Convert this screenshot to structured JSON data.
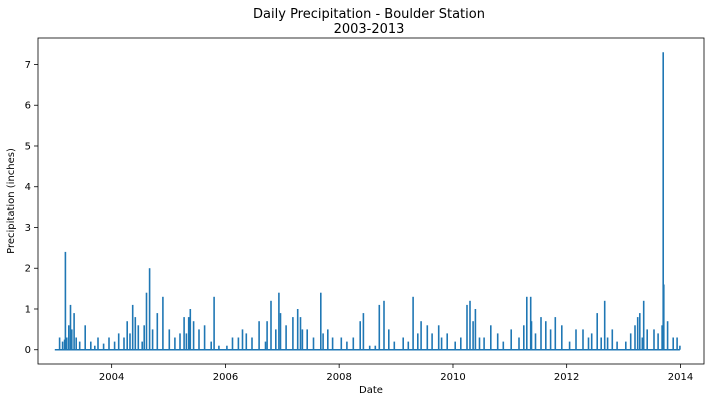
{
  "chart_data": {
    "type": "line",
    "title": "Daily Precipitation - Boulder Station",
    "subtitle": "2003-2013",
    "xlabel": "Date",
    "ylabel": "Precipitation (inches)",
    "xlim": [
      "2002-09-15",
      "2014-06-01"
    ],
    "ylim": [
      -0.35,
      7.65
    ],
    "x_ticks": [
      "2004",
      "2006",
      "2008",
      "2010",
      "2012",
      "2014"
    ],
    "y_ticks": [
      "0",
      "1",
      "2",
      "3",
      "4",
      "5",
      "6",
      "7"
    ],
    "grid": false,
    "line_color": "#1f77b4",
    "series": [
      {
        "x": [
          "2003-01-01",
          "2003-02-01",
          "2003-02-20",
          "2003-03-05",
          "2003-03-10",
          "2003-03-19",
          "2003-04-01",
          "2003-04-12",
          "2003-04-20",
          "2003-05-05",
          "2003-05-18",
          "2003-06-10",
          "2003-07-15",
          "2003-08-20",
          "2003-09-15",
          "2003-10-05",
          "2003-11-10",
          "2003-12-15",
          "2004-01-20",
          "2004-02-15",
          "2004-03-20",
          "2004-04-10",
          "2004-04-28",
          "2004-05-15",
          "2004-06-01",
          "2004-06-20",
          "2004-07-15",
          "2004-07-28",
          "2004-08-12",
          "2004-09-01",
          "2004-09-20",
          "2004-10-20",
          "2004-11-25",
          "2005-01-05",
          "2005-02-10",
          "2005-03-15",
          "2005-04-10",
          "2005-04-25",
          "2005-05-10",
          "2005-05-20",
          "2005-06-10",
          "2005-07-15",
          "2005-08-20",
          "2005-10-01",
          "2005-10-20",
          "2005-11-20",
          "2006-01-10",
          "2006-02-15",
          "2006-03-25",
          "2006-04-20",
          "2006-05-15",
          "2006-06-20",
          "2006-08-05",
          "2006-09-15",
          "2006-09-25",
          "2006-10-20",
          "2006-11-20",
          "2006-12-10",
          "2006-12-20",
          "2007-01-25",
          "2007-03-10",
          "2007-04-10",
          "2007-04-28",
          "2007-05-10",
          "2007-06-10",
          "2007-07-20",
          "2007-09-05",
          "2007-09-20",
          "2007-10-20",
          "2007-11-20",
          "2008-01-15",
          "2008-02-20",
          "2008-04-01",
          "2008-05-15",
          "2008-06-05",
          "2008-07-15",
          "2008-08-20",
          "2008-09-15",
          "2008-10-15",
          "2008-11-15",
          "2008-12-20",
          "2009-02-15",
          "2009-03-20",
          "2009-04-20",
          "2009-05-20",
          "2009-06-10",
          "2009-07-20",
          "2009-08-20",
          "2009-10-01",
          "2009-10-20",
          "2009-11-25",
          "2010-01-15",
          "2010-02-20",
          "2010-04-01",
          "2010-04-20",
          "2010-05-10",
          "2010-05-25",
          "2010-06-20",
          "2010-07-20",
          "2010-09-01",
          "2010-10-15",
          "2010-11-20",
          "2011-01-10",
          "2011-03-01",
          "2011-04-01",
          "2011-04-20",
          "2011-05-15",
          "2011-05-20",
          "2011-06-15",
          "2011-07-20",
          "2011-08-20",
          "2011-09-20",
          "2011-10-20",
          "2011-12-01",
          "2012-01-20",
          "2012-03-01",
          "2012-04-15",
          "2012-05-20",
          "2012-06-10",
          "2012-07-15",
          "2012-08-10",
          "2012-09-01",
          "2012-09-20",
          "2012-10-20",
          "2012-11-20",
          "2013-01-15",
          "2013-02-15",
          "2013-03-15",
          "2013-04-01",
          "2013-04-15",
          "2013-05-01",
          "2013-05-10",
          "2013-06-01",
          "2013-07-15",
          "2013-08-10",
          "2013-09-05",
          "2013-09-12",
          "2013-09-16",
          "2013-10-10",
          "2013-11-15",
          "2013-12-10",
          "2013-12-28"
        ],
        "y": [
          0.0,
          0.3,
          0.2,
          0.25,
          2.4,
          0.3,
          0.6,
          1.1,
          0.5,
          0.9,
          0.3,
          0.2,
          0.6,
          0.2,
          0.1,
          0.3,
          0.15,
          0.3,
          0.2,
          0.4,
          0.3,
          0.7,
          0.4,
          1.1,
          0.8,
          0.6,
          0.2,
          0.6,
          1.4,
          2.0,
          0.5,
          0.9,
          1.3,
          0.5,
          0.3,
          0.4,
          0.8,
          0.4,
          0.8,
          1.0,
          0.7,
          0.5,
          0.6,
          0.2,
          1.3,
          0.1,
          0.1,
          0.3,
          0.3,
          0.5,
          0.4,
          0.3,
          0.7,
          0.2,
          0.7,
          1.2,
          0.5,
          1.4,
          0.9,
          0.6,
          0.8,
          1.0,
          0.8,
          0.5,
          0.5,
          0.3,
          1.4,
          0.4,
          0.5,
          0.3,
          0.3,
          0.2,
          0.3,
          0.7,
          0.9,
          0.1,
          0.1,
          1.1,
          1.2,
          0.5,
          0.2,
          0.3,
          0.2,
          1.3,
          0.4,
          0.7,
          0.6,
          0.4,
          0.6,
          0.3,
          0.4,
          0.2,
          0.3,
          1.1,
          1.2,
          0.7,
          1.0,
          0.3,
          0.3,
          0.6,
          0.4,
          0.2,
          0.5,
          0.3,
          0.6,
          1.3,
          1.3,
          0.7,
          0.4,
          0.8,
          0.7,
          0.5,
          0.8,
          0.6,
          0.2,
          0.5,
          0.5,
          0.3,
          0.4,
          0.9,
          0.3,
          1.2,
          0.3,
          0.5,
          0.2,
          0.2,
          0.4,
          0.6,
          0.8,
          0.9,
          0.3,
          1.2,
          0.5,
          0.5,
          0.4,
          0.6,
          7.3,
          1.6,
          0.7,
          0.3,
          0.3,
          0.1
        ]
      }
    ]
  }
}
